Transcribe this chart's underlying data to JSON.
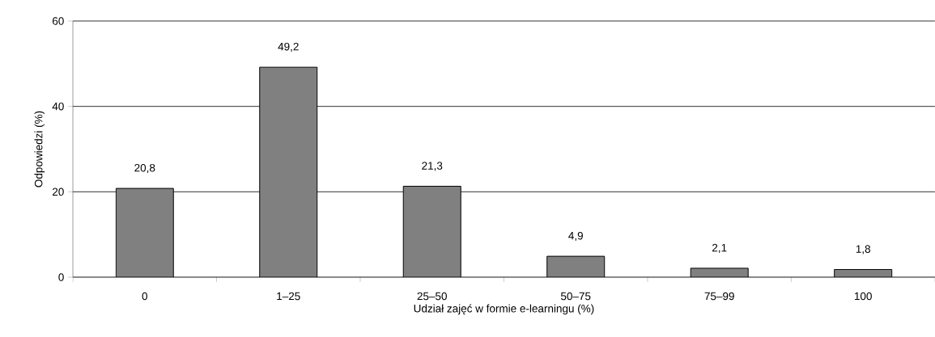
{
  "chart_data": {
    "type": "bar",
    "categories": [
      "0",
      "1–25",
      "25–50",
      "50–75",
      "75–99",
      "100"
    ],
    "values": [
      20.8,
      49.2,
      21.3,
      4.9,
      2.1,
      1.8
    ],
    "value_labels": [
      "20,8",
      "49,2",
      "21,3",
      "4,9",
      "2,1",
      "1,8"
    ],
    "color": "#808080",
    "xlabel": "Udział zajęć w formie e-learningu (%)",
    "ylabel": "Odpowiedzi (%)",
    "ylim": [
      0,
      60
    ],
    "yticks": [
      0,
      20,
      40,
      60
    ],
    "grid": "y"
  }
}
